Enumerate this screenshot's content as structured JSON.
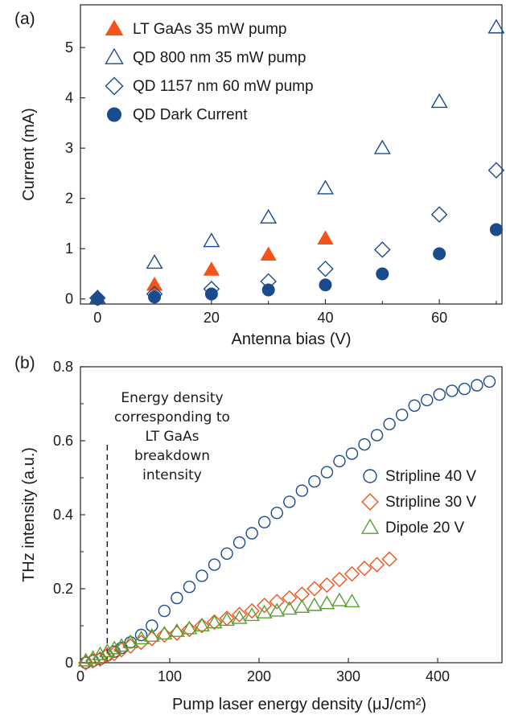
{
  "chart_data": [
    {
      "panel_label": "(a)",
      "type": "scatter",
      "xlabel": "Antenna bias (V)",
      "ylabel": "Current (mA)",
      "xlim": [
        -3,
        71
      ],
      "ylim": [
        -0.1,
        5.85
      ],
      "xticks": [
        0,
        20,
        40,
        60
      ],
      "xticks_minor": [
        10,
        30,
        50,
        70
      ],
      "yticks": [
        0,
        1,
        2,
        3,
        4,
        5
      ],
      "legend_position": "top-left",
      "grid": false,
      "series": [
        {
          "name": "LT GaAs 35 mW pump",
          "marker": "filled-triangle",
          "color": "#f2541b",
          "x": [
            0,
            10,
            20,
            30,
            40
          ],
          "y": [
            0.02,
            0.28,
            0.58,
            0.88,
            1.2
          ]
        },
        {
          "name": "QD 800 nm 35 mW pump",
          "marker": "open-triangle",
          "color": "#1a4b8c",
          "x": [
            0,
            10,
            20,
            30,
            40,
            50,
            60,
            70
          ],
          "y": [
            0.02,
            0.72,
            1.15,
            1.62,
            2.2,
            3.0,
            3.92,
            5.4
          ]
        },
        {
          "name": "QD 1157 nm 60 mW pump",
          "marker": "open-diamond",
          "color": "#1a4b8c",
          "x": [
            0,
            10,
            20,
            30,
            40,
            50,
            60,
            70
          ],
          "y": [
            0.02,
            0.1,
            0.2,
            0.35,
            0.6,
            0.98,
            1.68,
            2.56
          ]
        },
        {
          "name": "QD Dark Current",
          "marker": "filled-circle",
          "color": "#1a4b8c",
          "x": [
            0,
            10,
            20,
            30,
            40,
            50,
            60,
            70
          ],
          "y": [
            0.0,
            0.04,
            0.1,
            0.18,
            0.28,
            0.5,
            0.9,
            1.38
          ]
        }
      ]
    },
    {
      "panel_label": "(b)",
      "type": "scatter",
      "xlabel": "Pump laser energy density (μJ/cm²)",
      "ylabel": "THz intensity (a.u.)",
      "xlim": [
        0,
        472
      ],
      "ylim": [
        0,
        0.8
      ],
      "xticks": [
        0,
        100,
        200,
        300,
        400
      ],
      "yticks": [
        0,
        0.2,
        0.4,
        0.6,
        0.8
      ],
      "ytick_labels": [
        "0",
        "0.2",
        "0.4",
        "0.6",
        "0.8"
      ],
      "legend_position": "right",
      "grid": false,
      "annotation": {
        "lines": [
          "Energy density",
          "corresponding to",
          "LT GaAs",
          "breakdown",
          "intensity"
        ],
        "x": 30,
        "y_from": 0.0,
        "y_to": 0.6
      },
      "series": [
        {
          "name": "Stripline 40 V",
          "marker": "open-circle",
          "color": "#1a4b8c",
          "x": [
            6,
            14,
            22,
            30,
            38,
            46,
            56,
            68,
            80,
            94,
            108,
            122,
            136,
            150,
            164,
            178,
            192,
            206,
            220,
            234,
            248,
            262,
            276,
            290,
            304,
            318,
            332,
            346,
            360,
            374,
            388,
            402,
            416,
            430,
            444,
            458
          ],
          "y": [
            0.0,
            0.005,
            0.01,
            0.02,
            0.03,
            0.04,
            0.055,
            0.075,
            0.1,
            0.14,
            0.175,
            0.205,
            0.235,
            0.265,
            0.295,
            0.325,
            0.35,
            0.38,
            0.405,
            0.435,
            0.465,
            0.49,
            0.515,
            0.545,
            0.565,
            0.59,
            0.615,
            0.645,
            0.67,
            0.695,
            0.71,
            0.725,
            0.735,
            0.74,
            0.75,
            0.76
          ]
        },
        {
          "name": "Stripline 30 V",
          "marker": "open-diamond",
          "color": "#f2541b",
          "x": [
            6,
            14,
            22,
            30,
            38,
            46,
            56,
            68,
            80,
            94,
            108,
            122,
            136,
            150,
            164,
            178,
            192,
            206,
            220,
            234,
            248,
            262,
            276,
            290,
            304,
            318,
            332,
            346
          ],
          "y": [
            0.0,
            0.005,
            0.01,
            0.02,
            0.025,
            0.035,
            0.045,
            0.055,
            0.065,
            0.075,
            0.08,
            0.09,
            0.1,
            0.11,
            0.12,
            0.13,
            0.14,
            0.155,
            0.165,
            0.175,
            0.185,
            0.2,
            0.21,
            0.225,
            0.24,
            0.255,
            0.265,
            0.28
          ]
        },
        {
          "name": "Dipole 20 V",
          "marker": "open-triangle",
          "color": "#5a9e2f",
          "x": [
            6,
            14,
            22,
            30,
            38,
            46,
            56,
            68,
            80,
            94,
            108,
            122,
            136,
            150,
            164,
            178,
            192,
            206,
            220,
            234,
            248,
            262,
            276,
            290,
            304
          ],
          "y": [
            0.005,
            0.012,
            0.022,
            0.03,
            0.038,
            0.045,
            0.055,
            0.065,
            0.072,
            0.078,
            0.085,
            0.092,
            0.1,
            0.108,
            0.115,
            0.12,
            0.128,
            0.135,
            0.14,
            0.145,
            0.15,
            0.155,
            0.16,
            0.168,
            0.165
          ]
        }
      ]
    }
  ]
}
